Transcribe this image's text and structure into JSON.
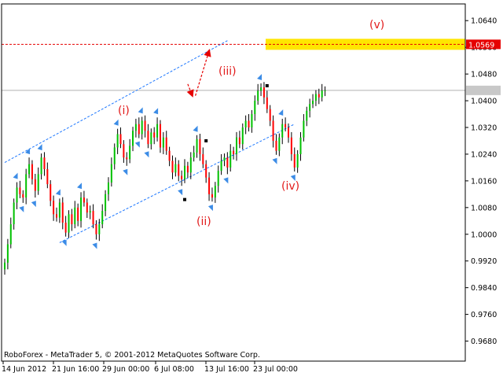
{
  "chart_data": {
    "type": "candlestick",
    "title": "",
    "platform_label": "RoboForex - MetaTrader 5, © 2001-2012 MetaQuotes Software Corp.",
    "y_range": [
      0.962,
      1.069
    ],
    "y_ticks": [
      "1.0640",
      "1.0560",
      "1.0480",
      "1.0400",
      "1.0320",
      "1.0240",
      "1.0160",
      "1.0080",
      "1.0000",
      "0.9920",
      "0.9840",
      "0.9760",
      "0.9680"
    ],
    "x_ticks": [
      "14 Jun 2012",
      "21 Jun 16:00",
      "29 Jun 00:00",
      "6 Jul 08:00",
      "13 Jul 16:00",
      "23 Jul 00:00"
    ],
    "target_level_label": "1.0569",
    "target_level": 1.0569,
    "current_price": 1.0431,
    "wave_labels": [
      "(i)",
      "(ii)",
      "(iii)",
      "(iv)",
      "(v)"
    ],
    "colors": {
      "bull": "#00c000",
      "bear": "#ff0000",
      "wick": "#000000",
      "fractal": "#3c8ce6",
      "channel": "#1e78ff",
      "target_band": "#ffe600",
      "target_line": "#e60000",
      "wave_text": "#e21a1a",
      "grid": "#c0c0c0",
      "axis_text": "#000000"
    },
    "close_series": [
      0.9915,
      0.997,
      1.003,
      1.0095,
      1.014,
      1.012,
      1.011,
      1.018,
      1.021,
      1.0165,
      1.013,
      1.018,
      1.023,
      1.0195,
      1.015,
      1.01,
      1.006,
      1.005,
      1.0095,
      1.0035,
      1.0005,
      1.006,
      1.003,
      1.008,
      1.004,
      1.011,
      1.0095,
      1.0065,
      1.007,
      1.003,
      1.0,
      1.003,
      1.007,
      1.012,
      1.0155,
      1.021,
      1.026,
      1.03,
      1.027,
      1.023,
      1.0225,
      1.0265,
      1.031,
      1.033,
      1.03,
      1.034,
      1.031,
      1.027,
      1.0305,
      1.029,
      1.033,
      1.026,
      1.029,
      1.025,
      1.022,
      1.0185,
      1.021,
      1.0175,
      1.0165,
      1.0205,
      1.0185,
      1.023,
      1.0245,
      1.0285,
      1.024,
      1.021,
      1.017,
      1.012,
      1.011,
      1.0145,
      1.019,
      1.022,
      1.023,
      1.02,
      1.025,
      1.024,
      1.029,
      1.027,
      1.032,
      1.034,
      1.032,
      1.036,
      1.04,
      1.043,
      1.044,
      1.041,
      1.0375,
      1.034,
      1.028,
      1.025,
      1.029,
      1.033,
      1.032,
      1.029,
      1.024,
      1.02,
      1.024,
      1.029,
      1.034,
      1.037,
      1.039,
      1.04,
      1.042,
      1.041,
      1.043,
      1.0431
    ],
    "channel_upper": {
      "x": [
        0,
        73
      ],
      "y": [
        1.0215,
        1.058
      ]
    },
    "channel_lower": {
      "x": [
        18,
        95
      ],
      "y": [
        0.9975,
        1.033
      ]
    },
    "wave_arrows": {
      "short": {
        "from": [
          60,
          1.045
        ],
        "to": [
          61.5,
          1.0415
        ]
      },
      "long": {
        "from": [
          62.5,
          1.0415
        ],
        "to": [
          67,
          1.055
        ]
      }
    },
    "pivots": [
      {
        "x": 59,
        "y": 1.0104
      },
      {
        "x": 66,
        "y": 1.028
      },
      {
        "x": 86,
        "y": 1.0445
      }
    ]
  }
}
